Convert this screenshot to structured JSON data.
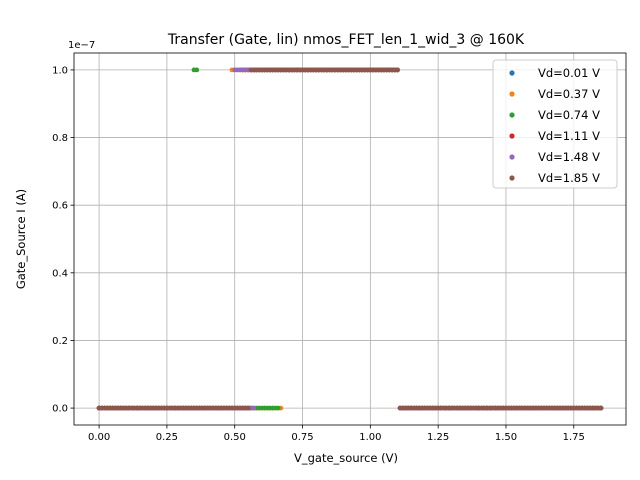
{
  "chart_data": {
    "type": "scatter",
    "title": "Transfer (Gate, lin) nmos_FET_len_1_wid_3 @ 160K",
    "xlabel": "V_gate_source (V)",
    "ylabel": "Gate_Source I (A)",
    "y_scale_label": "1e−7",
    "y_multiplier": 1e-07,
    "xlim": [
      -0.0925,
      1.9425
    ],
    "ylim": [
      -0.05,
      1.05
    ],
    "x_ticks": [
      0.0,
      0.25,
      0.5,
      0.75,
      1.0,
      1.25,
      1.5,
      1.75
    ],
    "x_tick_labels": [
      "0.00",
      "0.25",
      "0.50",
      "0.75",
      "1.00",
      "1.25",
      "1.50",
      "1.75"
    ],
    "y_ticks": [
      0.0,
      0.2,
      0.4,
      0.6,
      0.8,
      1.0
    ],
    "y_tick_labels": [
      "0.0",
      "0.2",
      "0.4",
      "0.6",
      "0.8",
      "1.0"
    ],
    "grid": true,
    "legend_position": "top-right",
    "series": [
      {
        "name": "Vd=0.01 V",
        "color": "#1f77b4",
        "segments": [
          {
            "x_start": 0.0,
            "x_end": 0.55,
            "y": 0.0
          },
          {
            "x_start": 0.56,
            "x_end": 1.1,
            "y": 1.0
          },
          {
            "x_start": 1.11,
            "x_end": 1.85,
            "y": 0.0
          }
        ]
      },
      {
        "name": "Vd=0.37 V",
        "color": "#ff7f0e",
        "segments": [
          {
            "x_start": 0.0,
            "x_end": 0.67,
            "y": 0.0
          },
          {
            "x_start": 0.49,
            "x_end": 1.1,
            "y": 1.0
          },
          {
            "x_start": 1.11,
            "x_end": 1.85,
            "y": 0.0
          }
        ]
      },
      {
        "name": "Vd=0.74 V",
        "color": "#2ca02c",
        "segments": [
          {
            "x_start": 0.0,
            "x_end": 0.66,
            "y": 0.0
          },
          {
            "x_start": 0.35,
            "x_end": 0.36,
            "y": 1.0
          },
          {
            "x_start": 0.57,
            "x_end": 1.1,
            "y": 1.0
          },
          {
            "x_start": 1.11,
            "x_end": 1.85,
            "y": 0.0
          }
        ]
      },
      {
        "name": "Vd=1.11 V",
        "color": "#d62728",
        "segments": [
          {
            "x_start": 0.0,
            "x_end": 0.56,
            "y": 0.0
          },
          {
            "x_start": 0.53,
            "x_end": 1.1,
            "y": 1.0
          },
          {
            "x_start": 1.11,
            "x_end": 1.85,
            "y": 0.0
          }
        ]
      },
      {
        "name": "Vd=1.48 V",
        "color": "#9467bd",
        "segments": [
          {
            "x_start": 0.0,
            "x_end": 0.57,
            "y": 0.0
          },
          {
            "x_start": 0.5,
            "x_end": 1.1,
            "y": 1.0
          },
          {
            "x_start": 1.11,
            "x_end": 1.85,
            "y": 0.0
          }
        ]
      },
      {
        "name": "Vd=1.85 V",
        "color": "#8c564b",
        "segments": [
          {
            "x_start": 0.0,
            "x_end": 0.55,
            "y": 0.0
          },
          {
            "x_start": 0.56,
            "x_end": 1.1,
            "y": 1.0
          },
          {
            "x_start": 1.11,
            "x_end": 1.85,
            "y": 0.0
          }
        ]
      }
    ]
  }
}
